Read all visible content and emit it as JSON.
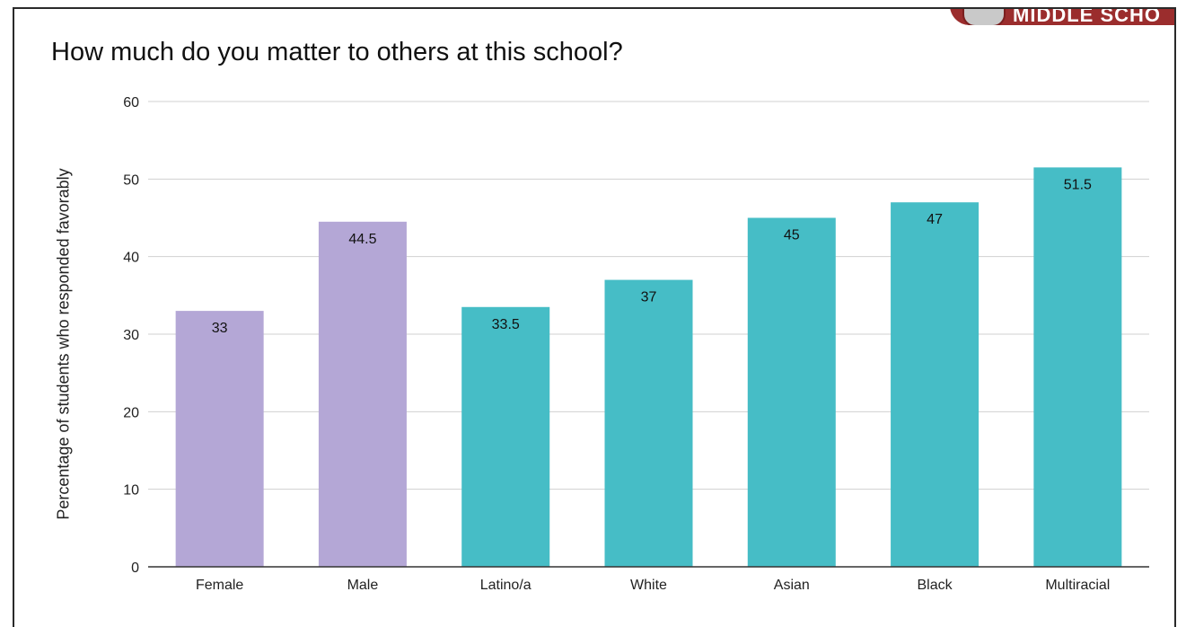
{
  "header_badge": {
    "text": "MIDDLE SCHO"
  },
  "chart_data": {
    "type": "bar",
    "title": "How much do you matter to others at this school?",
    "xlabel": "",
    "ylabel": "Percentage of students who responded favorably",
    "ylim": [
      0,
      60
    ],
    "yticks": [
      0,
      10,
      20,
      30,
      40,
      50,
      60
    ],
    "grid": true,
    "categories": [
      "Female",
      "Male",
      "Latino/a",
      "White",
      "Asian",
      "Black",
      "Multiracial"
    ],
    "values": [
      33,
      44.5,
      33.5,
      37,
      45,
      47,
      51.5
    ],
    "data_labels": [
      "33",
      "44.5",
      "33.5",
      "37",
      "45",
      "47",
      "51.5"
    ],
    "bar_colors": [
      "#b4a7d6",
      "#b4a7d6",
      "#46bdc6",
      "#46bdc6",
      "#46bdc6",
      "#46bdc6",
      "#46bdc6"
    ]
  }
}
